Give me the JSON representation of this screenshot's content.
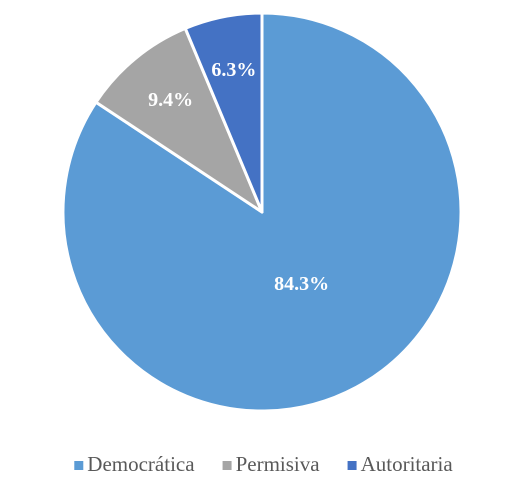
{
  "chart_data": {
    "type": "pie",
    "categories": [
      "Democrática",
      "Permisiva",
      "Autoritaria"
    ],
    "values": [
      84.3,
      9.4,
      6.3
    ],
    "value_labels": [
      "84.3%",
      "9.4%",
      "6.3%"
    ],
    "colors": [
      "#5B9BD5",
      "#A5A5A5",
      "#4472C4"
    ],
    "legend": "bottom"
  }
}
